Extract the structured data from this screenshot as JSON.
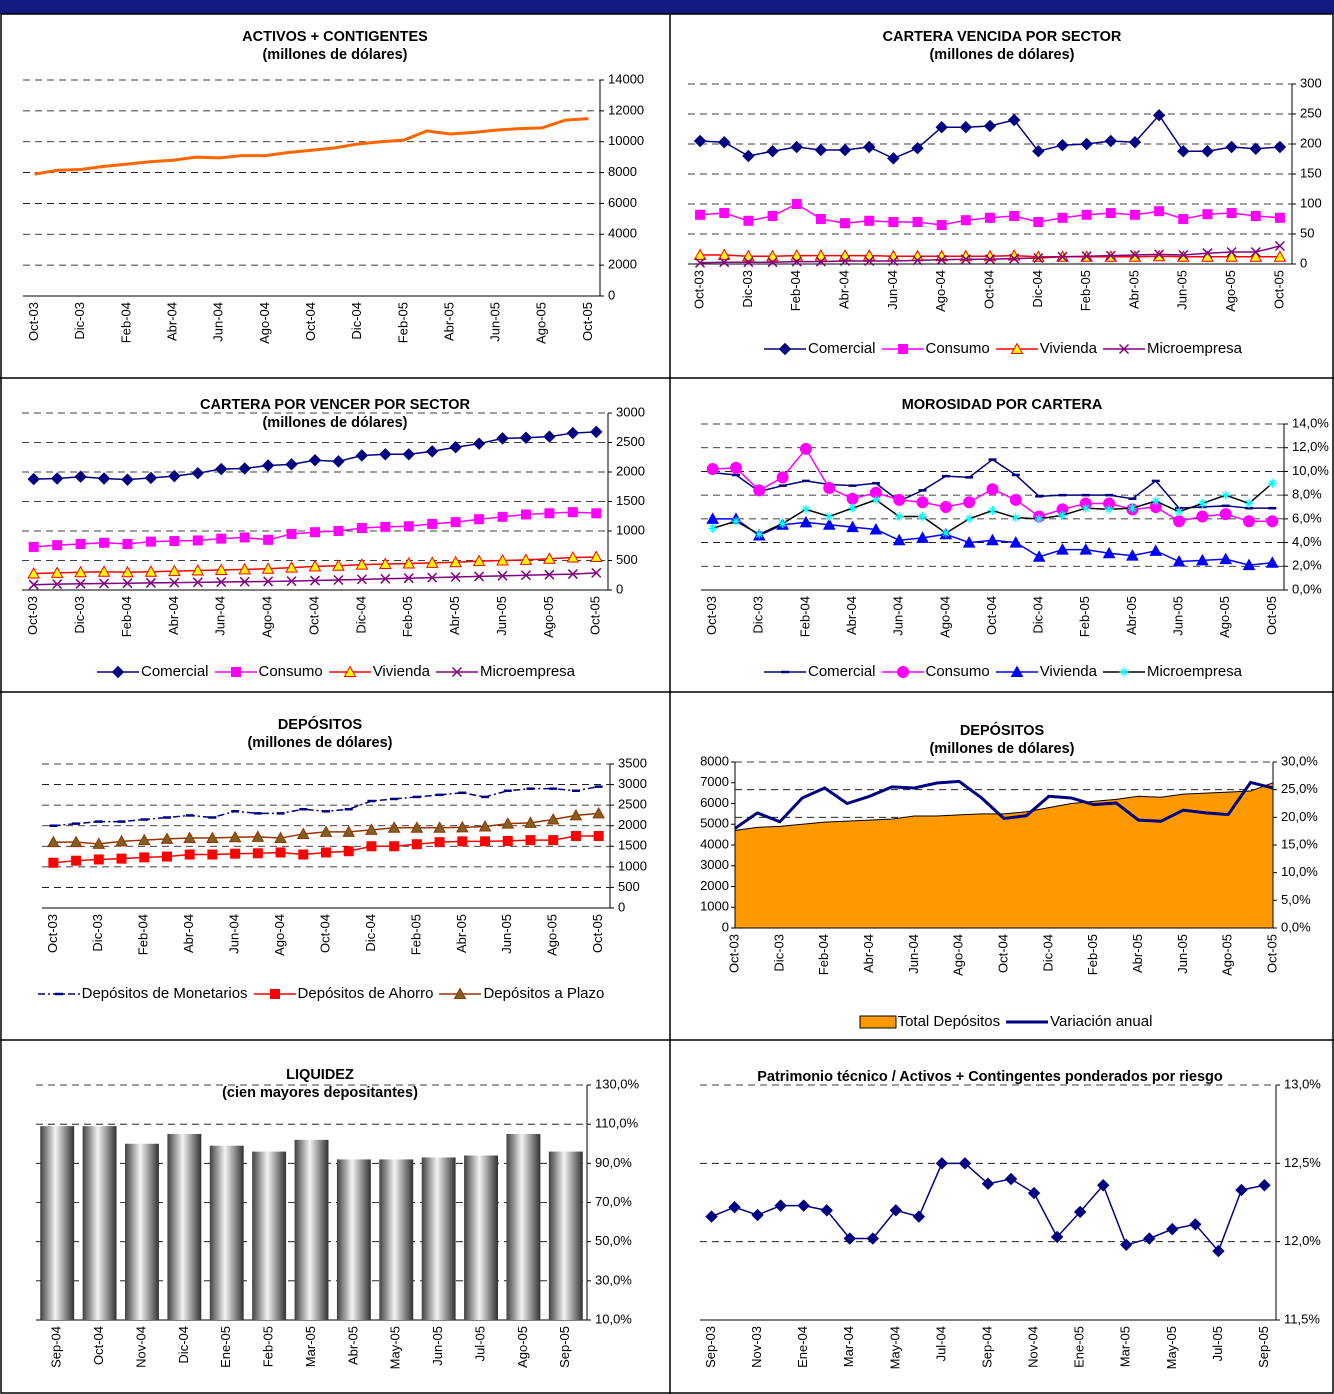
{
  "chart_data": [
    {
      "type": "line",
      "title": "ACTIVOS + CONTIGENTES",
      "subtitle": "(millones de dólares)",
      "categories": [
        "Oct-03",
        null,
        "Dic-03",
        null,
        "Feb-04",
        null,
        "Abr-04",
        null,
        "Jun-04",
        null,
        "Ago-04",
        null,
        "Oct-04",
        null,
        "Dic-04",
        null,
        "Feb-05",
        null,
        "Abr-05",
        null,
        "Jun-05",
        null,
        "Ago-05",
        null,
        "Oct-05"
      ],
      "values": [
        7900,
        8150,
        8200,
        8400,
        8550,
        8700,
        8800,
        9000,
        8950,
        9100,
        9100,
        9300,
        9450,
        9600,
        9850,
        10000,
        10100,
        10700,
        10500,
        10600,
        10750,
        10850,
        10900,
        11400,
        11500
      ],
      "color": "#ff6600",
      "line_width": 3,
      "ylim": [
        0,
        14000
      ],
      "yticks": [
        0,
        2000,
        4000,
        6000,
        8000,
        10000,
        12000,
        14000
      ],
      "grid": true
    },
    {
      "type": "line",
      "title": "CARTERA VENCIDA POR SECTOR",
      "subtitle": "(millones de dólares)",
      "categories": [
        "Oct-03",
        null,
        "Dic-03",
        null,
        "Feb-04",
        null,
        "Abr-04",
        null,
        "Jun-04",
        null,
        "Ago-04",
        null,
        "Oct-04",
        null,
        "Dic-04",
        null,
        "Feb-05",
        null,
        "Abr-05",
        null,
        "Jun-05",
        null,
        "Ago-05",
        null,
        "Oct-05"
      ],
      "series": [
        {
          "name": "Comercial",
          "color": "#000080",
          "marker": "diamond",
          "values": [
            205,
            203,
            180,
            188,
            195,
            190,
            190,
            195,
            176,
            193,
            228,
            228,
            230,
            240,
            188,
            198,
            200,
            205,
            203,
            248,
            188,
            188,
            195,
            192,
            195
          ]
        },
        {
          "name": "Consumo",
          "color": "#ff00ff",
          "marker": "square",
          "values": [
            82,
            85,
            72,
            80,
            100,
            75,
            68,
            72,
            70,
            70,
            65,
            73,
            77,
            80,
            70,
            77,
            82,
            85,
            82,
            88,
            75,
            83,
            85,
            80,
            77
          ]
        },
        {
          "name": "Vivienda",
          "color": "#ff0000",
          "marker": "triangle",
          "marker_fill": "#ffff00",
          "values": [
            15,
            15,
            13,
            13,
            14,
            14,
            14,
            14,
            13,
            13,
            13,
            13,
            13,
            14,
            12,
            12,
            12,
            12,
            12,
            13,
            12,
            12,
            12,
            12,
            12
          ]
        },
        {
          "name": "Microempresa",
          "color": "#800080",
          "marker": "x",
          "values": [
            2,
            3,
            3,
            3,
            4,
            4,
            5,
            5,
            5,
            6,
            7,
            8,
            8,
            9,
            10,
            12,
            13,
            14,
            15,
            16,
            15,
            18,
            20,
            20,
            30
          ]
        }
      ],
      "ylim": [
        0,
        300
      ],
      "yticks": [
        0,
        50,
        100,
        150,
        200,
        250,
        300
      ],
      "grid": true
    },
    {
      "type": "line",
      "title": "CARTERA POR VENCER POR SECTOR",
      "subtitle": "(millones de dólares)",
      "categories": [
        "Oct-03",
        null,
        "Dic-03",
        null,
        "Feb-04",
        null,
        "Abr-04",
        null,
        "Jun-04",
        null,
        "Ago-04",
        null,
        "Oct-04",
        null,
        "Dic-04",
        null,
        "Feb-05",
        null,
        "Abr-05",
        null,
        "Jun-05",
        null,
        "Ago-05",
        null,
        "Oct-05"
      ],
      "series": [
        {
          "name": "Comercial",
          "color": "#000080",
          "marker": "diamond",
          "values": [
            1880,
            1890,
            1920,
            1890,
            1870,
            1900,
            1930,
            1980,
            2050,
            2060,
            2110,
            2130,
            2200,
            2180,
            2280,
            2300,
            2300,
            2350,
            2420,
            2480,
            2570,
            2580,
            2600,
            2660,
            2680
          ]
        },
        {
          "name": "Consumo",
          "color": "#ff00ff",
          "marker": "square",
          "values": [
            730,
            760,
            780,
            800,
            780,
            820,
            830,
            840,
            870,
            890,
            850,
            950,
            980,
            1000,
            1050,
            1070,
            1080,
            1120,
            1150,
            1200,
            1240,
            1280,
            1300,
            1320,
            1300
          ]
        },
        {
          "name": "Vivienda",
          "color": "#ff0000",
          "marker": "triangle",
          "marker_fill": "#ffff00",
          "values": [
            280,
            290,
            300,
            310,
            300,
            310,
            320,
            330,
            340,
            350,
            360,
            380,
            400,
            410,
            430,
            440,
            450,
            460,
            470,
            490,
            500,
            510,
            530,
            550,
            560
          ]
        },
        {
          "name": "Microempresa",
          "color": "#800080",
          "marker": "x",
          "values": [
            90,
            100,
            105,
            110,
            115,
            120,
            125,
            130,
            135,
            140,
            145,
            150,
            160,
            170,
            180,
            190,
            200,
            210,
            220,
            230,
            240,
            250,
            260,
            270,
            290
          ]
        }
      ],
      "ylim": [
        0,
        3000
      ],
      "yticks": [
        0,
        500,
        1000,
        1500,
        2000,
        2500,
        3000
      ],
      "grid": true
    },
    {
      "type": "line",
      "title": "MOROSIDAD POR CARTERA",
      "categories": [
        "Oct-03",
        null,
        "Dic-03",
        null,
        "Feb-04",
        null,
        "Abr-04",
        null,
        "Jun-04",
        null,
        "Ago-04",
        null,
        "Oct-04",
        null,
        "Dic-04",
        null,
        "Feb-05",
        null,
        "Abr-05",
        null,
        "Jun-05",
        null,
        "Ago-05",
        null,
        "Oct-05"
      ],
      "series": [
        {
          "name": "Comercial",
          "color": "#000080",
          "marker": "dash",
          "values": [
            9.9,
            9.7,
            8.3,
            8.8,
            9.2,
            8.9,
            8.8,
            9.0,
            7.5,
            8.4,
            9.6,
            9.5,
            11.0,
            9.7,
            7.9,
            8.0,
            8.0,
            8.0,
            7.7,
            9.2,
            6.9,
            7.0,
            7.1,
            6.9,
            6.9
          ]
        },
        {
          "name": "Consumo",
          "color": "#ff00ff",
          "marker": "circle",
          "values": [
            10.2,
            10.3,
            8.4,
            9.5,
            11.9,
            8.6,
            7.7,
            8.2,
            7.6,
            7.4,
            7.0,
            7.4,
            8.5,
            7.6,
            6.2,
            6.8,
            7.3,
            7.3,
            6.8,
            7.0,
            5.8,
            6.2,
            6.4,
            5.8,
            5.8
          ]
        },
        {
          "name": "Vivienda",
          "color": "#0000ff",
          "marker": "triangle",
          "values": [
            6.0,
            6.0,
            4.6,
            5.5,
            5.7,
            5.5,
            5.3,
            5.1,
            4.2,
            4.4,
            4.7,
            4.0,
            4.2,
            4.0,
            2.8,
            3.4,
            3.4,
            3.1,
            2.9,
            3.3,
            2.4,
            2.5,
            2.6,
            2.1,
            2.3
          ]
        },
        {
          "name": "Microempresa",
          "color": "#000000",
          "marker": "star",
          "marker_fill": "#00ffff",
          "values": [
            5.2,
            5.8,
            4.7,
            5.6,
            6.8,
            6.2,
            6.9,
            7.6,
            6.2,
            6.2,
            4.8,
            6.0,
            6.7,
            6.1,
            6.0,
            6.3,
            6.9,
            6.8,
            6.9,
            7.5,
            6.6,
            7.3,
            8.0,
            7.3,
            9.0
          ]
        }
      ],
      "ylim": [
        0,
        14
      ],
      "yticks": [
        {
          "value": 0,
          "label": "0,0%"
        },
        {
          "value": 2,
          "label": "2,0%"
        },
        {
          "value": 4,
          "label": "4,0%"
        },
        {
          "value": 6,
          "label": "6,0%"
        },
        {
          "value": 8,
          "label": "8,0%"
        },
        {
          "value": 10,
          "label": "10,0%"
        },
        {
          "value": 12,
          "label": "12,0%"
        },
        {
          "value": 14,
          "label": "14,0%"
        }
      ],
      "grid": true
    },
    {
      "type": "line",
      "title": "DEPÓSITOS",
      "subtitle": "(millones de dólares)",
      "categories": [
        "Oct-03",
        null,
        "Dic-03",
        null,
        "Feb-04",
        null,
        "Abr-04",
        null,
        "Jun-04",
        null,
        "Ago-04",
        null,
        "Oct-04",
        null,
        "Dic-04",
        null,
        "Feb-05",
        null,
        "Abr-05",
        null,
        "Jun-05",
        null,
        "Ago-05",
        null,
        "Oct-05"
      ],
      "series": [
        {
          "name": "Depósitos de Monetarios",
          "color": "#000080",
          "marker": "dash",
          "line_style": "dashdot",
          "values": [
            2000,
            2050,
            2100,
            2100,
            2150,
            2200,
            2250,
            2200,
            2350,
            2300,
            2300,
            2400,
            2350,
            2400,
            2600,
            2650,
            2700,
            2750,
            2800,
            2700,
            2850,
            2900,
            2900,
            2850,
            2950
          ]
        },
        {
          "name": "Depósitos de Ahorro",
          "color": "#ff0000",
          "marker": "square",
          "values": [
            1100,
            1150,
            1180,
            1200,
            1230,
            1250,
            1300,
            1300,
            1320,
            1330,
            1350,
            1300,
            1350,
            1380,
            1500,
            1500,
            1550,
            1600,
            1620,
            1620,
            1630,
            1650,
            1650,
            1750,
            1750
          ]
        },
        {
          "name": "Depósitos a Plazo",
          "color": "#993300",
          "marker": "triangle",
          "marker_fill": "#806020",
          "values": [
            1600,
            1600,
            1560,
            1620,
            1650,
            1680,
            1700,
            1700,
            1720,
            1730,
            1700,
            1800,
            1850,
            1850,
            1900,
            1950,
            1950,
            1950,
            1960,
            1980,
            2050,
            2070,
            2150,
            2250,
            2300
          ]
        }
      ],
      "ylim": [
        0,
        3500
      ],
      "yticks": [
        0,
        500,
        1000,
        1500,
        2000,
        2500,
        3000,
        3500
      ],
      "grid": true
    },
    {
      "type": "area",
      "title": "DEPÓSITOS",
      "subtitle": "(millones de dólares)",
      "categories": [
        "Oct-03",
        null,
        "Dic-03",
        null,
        "Feb-04",
        null,
        "Abr-04",
        null,
        "Jun-04",
        null,
        "Ago-04",
        null,
        "Oct-04",
        null,
        "Dic-04",
        null,
        "Feb-05",
        null,
        "Abr-05",
        null,
        "Jun-05",
        null,
        "Ago-05",
        null,
        "Oct-05"
      ],
      "series": [
        {
          "name": "Total Depósitos",
          "color": "#ff9900",
          "values": [
            4700,
            4850,
            4900,
            5000,
            5100,
            5150,
            5200,
            5250,
            5400,
            5400,
            5450,
            5500,
            5500,
            5600,
            5800,
            6000,
            6100,
            6200,
            6350,
            6300,
            6450,
            6500,
            6550,
            6600,
            7000
          ]
        },
        {
          "name": "Variación anual",
          "type": "line",
          "axis": "y2",
          "color": "#000080",
          "line_width": 3,
          "values": [
            18,
            20.8,
            19.2,
            23.5,
            25.3,
            22.5,
            23.8,
            25.5,
            25.3,
            26.2,
            26.5,
            23.5,
            19.8,
            20.3,
            23.8,
            23.5,
            22.3,
            22.6,
            19.5,
            19.3,
            21.3,
            20.8,
            20.5,
            26.3,
            25.3
          ]
        }
      ],
      "ylim": [
        0,
        8000
      ],
      "yticks": [
        0,
        1000,
        2000,
        3000,
        4000,
        5000,
        6000,
        7000,
        8000
      ],
      "y2lim": [
        0,
        30
      ],
      "y2ticks": [
        {
          "value": 0,
          "label": "0,0%"
        },
        {
          "value": 5,
          "label": "5,0%"
        },
        {
          "value": 10,
          "label": "10,0%"
        },
        {
          "value": 15,
          "label": "15,0%"
        },
        {
          "value": 20,
          "label": "20,0%"
        },
        {
          "value": 25,
          "label": "25,0%"
        },
        {
          "value": 30,
          "label": "30,0%"
        }
      ],
      "grid": true
    },
    {
      "type": "bar",
      "title": "LIQUIDEZ",
      "subtitle": "(cien mayores depositantes)",
      "categories": [
        "Sep-04",
        "Oct-04",
        "Nov-04",
        "Dic-04",
        "Ene-05",
        "Feb-05",
        "Mar-05",
        "Abr-05",
        "May-05",
        "Jun-05",
        "Jul-05",
        "Ago-05",
        "Sep-05"
      ],
      "values": [
        109,
        109,
        100,
        105,
        99,
        96,
        102,
        92,
        92,
        93,
        94,
        105,
        96
      ],
      "ylim": [
        10,
        130
      ],
      "yticks": [
        {
          "value": 10,
          "label": "10,0%"
        },
        {
          "value": 30,
          "label": "30,0%"
        },
        {
          "value": 50,
          "label": "50,0%"
        },
        {
          "value": 70,
          "label": "70,0%"
        },
        {
          "value": 90,
          "label": "90,0%"
        },
        {
          "value": 110,
          "label": "110,0%"
        },
        {
          "value": 130,
          "label": "130,0%"
        }
      ],
      "grid": true
    },
    {
      "type": "line",
      "title": "Patrimonio técnico / Activos + Contingentes ponderados por riesgo",
      "categories": [
        "Sep-03",
        null,
        "Nov-03",
        null,
        "Ene-04",
        null,
        "Mar-04",
        null,
        "May-04",
        null,
        "Jul-04",
        null,
        "Sep-04",
        null,
        "Nov-04",
        null,
        "Ene-05",
        null,
        "Mar-05",
        null,
        "May-05",
        null,
        "Jul-05",
        null,
        "Sep-05"
      ],
      "values": [
        12.16,
        12.22,
        12.17,
        12.23,
        12.23,
        12.2,
        12.02,
        12.02,
        12.2,
        12.16,
        12.5,
        12.5,
        12.37,
        12.4,
        12.31,
        12.03,
        12.19,
        12.36,
        11.98,
        12.02,
        12.08,
        12.11,
        11.94,
        12.33,
        12.36
      ],
      "color": "#000080",
      "marker": "diamond",
      "ylim": [
        11.5,
        13
      ],
      "yticks": [
        {
          "value": 11.5,
          "label": "11,5%"
        },
        {
          "value": 12,
          "label": "12,0%"
        },
        {
          "value": 12.5,
          "label": "12,5%"
        },
        {
          "value": 13,
          "label": "13,0%"
        }
      ],
      "grid": true
    }
  ]
}
